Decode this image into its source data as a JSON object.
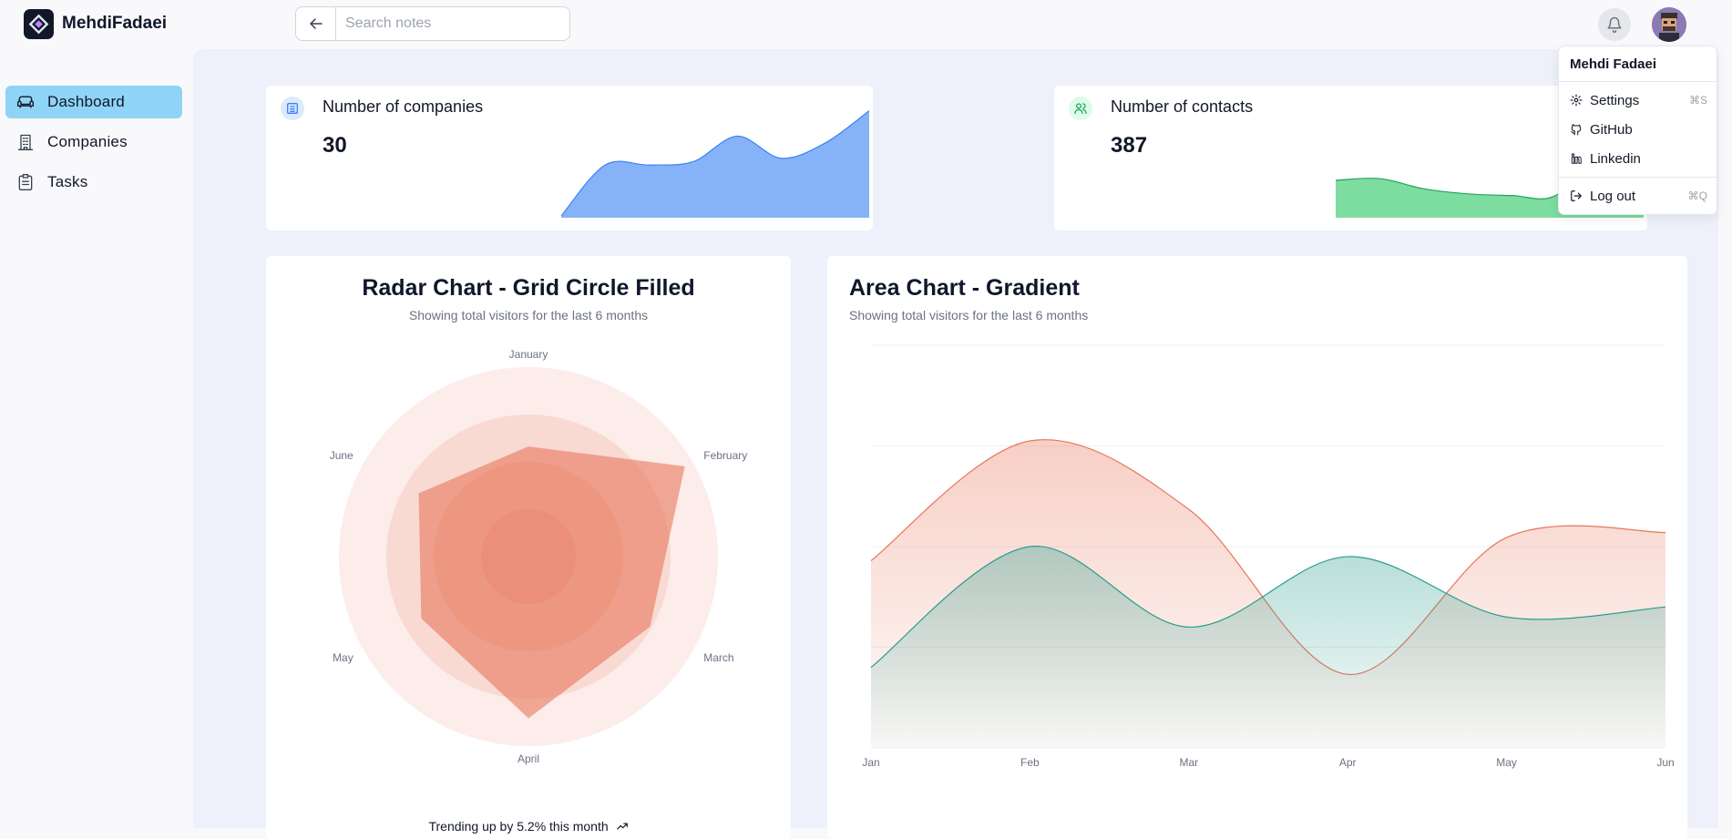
{
  "brand": {
    "name": "MehdiFadaei"
  },
  "search": {
    "placeholder": "Search notes",
    "value": ""
  },
  "sidebar": {
    "items": [
      {
        "label": "Dashboard",
        "icon": "sofa-icon",
        "active": true
      },
      {
        "label": "Companies",
        "icon": "building-icon",
        "active": false
      },
      {
        "label": "Tasks",
        "icon": "clipboard-icon",
        "active": false
      }
    ]
  },
  "stats": [
    {
      "title": "Number of companies",
      "value": "30",
      "icon": "building-badge-icon",
      "color": "#86b2f7"
    },
    {
      "title": "Number of contacts",
      "value": "387",
      "icon": "users-icon",
      "color": "#7ddc9f"
    }
  ],
  "radar": {
    "title": "Radar Chart - Grid Circle Filled",
    "subtitle": "Showing total visitors for the last 6 months",
    "footer": "Trending up by 5.2% this month"
  },
  "area": {
    "title": "Area Chart - Gradient",
    "subtitle": "Showing total visitors for the last 6 months"
  },
  "user_menu": {
    "user": "Mehdi Fadaei",
    "items": [
      {
        "label": "Settings",
        "shortcut": "⌘S",
        "icon": "gear-icon"
      },
      {
        "label": "GitHub",
        "shortcut": "",
        "icon": "github-icon"
      },
      {
        "label": "Linkedin",
        "shortcut": "",
        "icon": "linkedin-icon"
      },
      {
        "label": "Log out",
        "shortcut": "⌘Q",
        "icon": "logout-icon"
      }
    ]
  },
  "colors": {
    "accent": "#8fd4f7",
    "radar": "#e8765a",
    "area_top": "#e8765a",
    "area_bottom": "#2a9d8f",
    "companies": "#86b2f7",
    "contacts": "#7ddc9f"
  },
  "chart_data": [
    {
      "type": "area",
      "title": "",
      "x": [
        0,
        1,
        2,
        3,
        4,
        5,
        6,
        7
      ],
      "series": [
        {
          "values": [
            0,
            3,
            3,
            3.2,
            4.7,
            3.4,
            4.3,
            6.2
          ]
        }
      ],
      "ylim": [
        0,
        6.5
      ]
    },
    {
      "type": "area",
      "title": "",
      "x": [
        0,
        1,
        2,
        3,
        4,
        5,
        6,
        7
      ],
      "series": [
        {
          "values": [
            2.1,
            2.2,
            1.6,
            1.3,
            1.2,
            1.2,
            3.8,
            4.5
          ]
        }
      ],
      "ylim": [
        0,
        6.5
      ]
    },
    {
      "type": "radar",
      "title": "Radar Chart - Grid Circle Filled",
      "categories": [
        "January",
        "February",
        "March",
        "April",
        "May",
        "June"
      ],
      "series": [
        {
          "values": [
            186,
            305,
            237,
            273,
            209,
            214
          ]
        }
      ],
      "rlim": [
        0,
        320
      ]
    },
    {
      "type": "area",
      "title": "Area Chart - Gradient",
      "categories": [
        "Jan",
        "Feb",
        "Mar",
        "Apr",
        "May",
        "Jun"
      ],
      "series": [
        {
          "values": [
            186,
            305,
            237,
            73,
            209,
            214
          ]
        },
        {
          "values": [
            80,
            200,
            120,
            190,
            130,
            140
          ]
        }
      ],
      "ylim": [
        0,
        400
      ],
      "grid": true
    }
  ]
}
